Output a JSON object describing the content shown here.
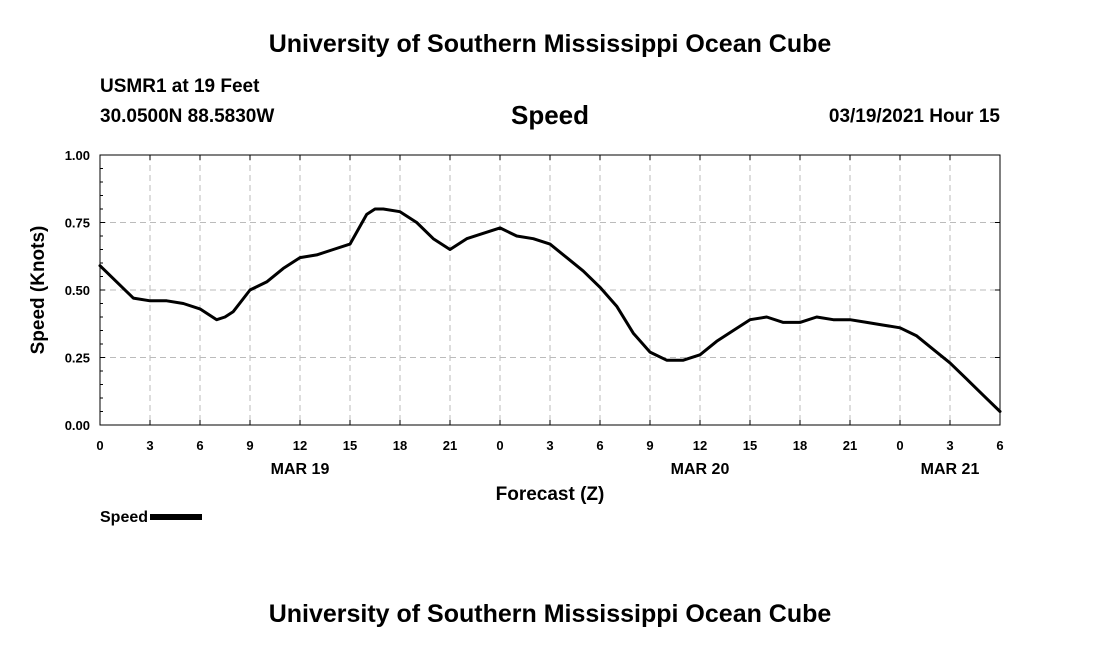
{
  "header": {
    "title": "University of Southern Mississippi Ocean Cube",
    "station": "USMR1 at 19 Feet",
    "coordinates": "30.0500N 88.5830W",
    "variable": "Speed",
    "timestamp": "03/19/2021 Hour 15"
  },
  "footer": {
    "title": "University of Southern Mississippi Ocean Cube"
  },
  "legend": {
    "label": "Speed"
  },
  "colors": {
    "line": "#000000",
    "grid": "#bbbbbb"
  },
  "chart_data": {
    "type": "line",
    "title": "Speed",
    "xlabel": "Forecast (Z)",
    "ylabel": "Speed (Knots)",
    "ylim": [
      0,
      1
    ],
    "xlim": [
      0,
      54
    ],
    "yticks": [
      {
        "value": 0,
        "label": "0.00"
      },
      {
        "value": 0.25,
        "label": "0.25"
      },
      {
        "value": 0.5,
        "label": "0.50"
      },
      {
        "value": 0.75,
        "label": "0.75"
      },
      {
        "value": 1,
        "label": "1.00"
      }
    ],
    "xticks": [
      {
        "value": 0,
        "label": "0"
      },
      {
        "value": 3,
        "label": "3"
      },
      {
        "value": 6,
        "label": "6"
      },
      {
        "value": 9,
        "label": "9"
      },
      {
        "value": 12,
        "label": "12"
      },
      {
        "value": 15,
        "label": "15"
      },
      {
        "value": 18,
        "label": "18"
      },
      {
        "value": 21,
        "label": "21"
      },
      {
        "value": 24,
        "label": "0"
      },
      {
        "value": 27,
        "label": "3"
      },
      {
        "value": 30,
        "label": "6"
      },
      {
        "value": 33,
        "label": "9"
      },
      {
        "value": 36,
        "label": "12"
      },
      {
        "value": 39,
        "label": "15"
      },
      {
        "value": 42,
        "label": "18"
      },
      {
        "value": 45,
        "label": "21"
      },
      {
        "value": 48,
        "label": "0"
      },
      {
        "value": 51,
        "label": "3"
      },
      {
        "value": 54,
        "label": "6"
      }
    ],
    "date_labels": [
      {
        "value": 12,
        "label": "MAR 19"
      },
      {
        "value": 36,
        "label": "MAR 20"
      },
      {
        "value": 51,
        "label": "MAR 21"
      }
    ],
    "grid": true,
    "legend_position": "bottom-left",
    "series": [
      {
        "name": "Speed",
        "x": [
          0,
          1,
          2,
          3,
          4,
          5,
          6,
          7,
          7.5,
          8,
          9,
          10,
          11,
          12,
          13,
          14,
          15,
          16,
          16.5,
          17,
          18,
          19,
          20,
          21,
          22,
          23,
          24,
          25,
          26,
          27,
          28,
          29,
          30,
          31,
          32,
          33,
          34,
          35,
          36,
          37,
          38,
          39,
          40,
          41,
          42,
          43,
          44,
          45,
          46,
          47,
          48,
          49,
          50,
          51,
          52,
          53,
          54
        ],
        "values": [
          0.59,
          0.53,
          0.47,
          0.46,
          0.46,
          0.45,
          0.43,
          0.39,
          0.4,
          0.42,
          0.5,
          0.53,
          0.58,
          0.62,
          0.63,
          0.65,
          0.67,
          0.78,
          0.8,
          0.8,
          0.79,
          0.75,
          0.69,
          0.65,
          0.69,
          0.71,
          0.73,
          0.7,
          0.69,
          0.67,
          0.62,
          0.57,
          0.51,
          0.44,
          0.34,
          0.27,
          0.24,
          0.24,
          0.26,
          0.31,
          0.35,
          0.39,
          0.4,
          0.38,
          0.38,
          0.4,
          0.39,
          0.39,
          0.38,
          0.37,
          0.36,
          0.33,
          0.28,
          0.23,
          0.17,
          0.11,
          0.05
        ]
      }
    ]
  }
}
